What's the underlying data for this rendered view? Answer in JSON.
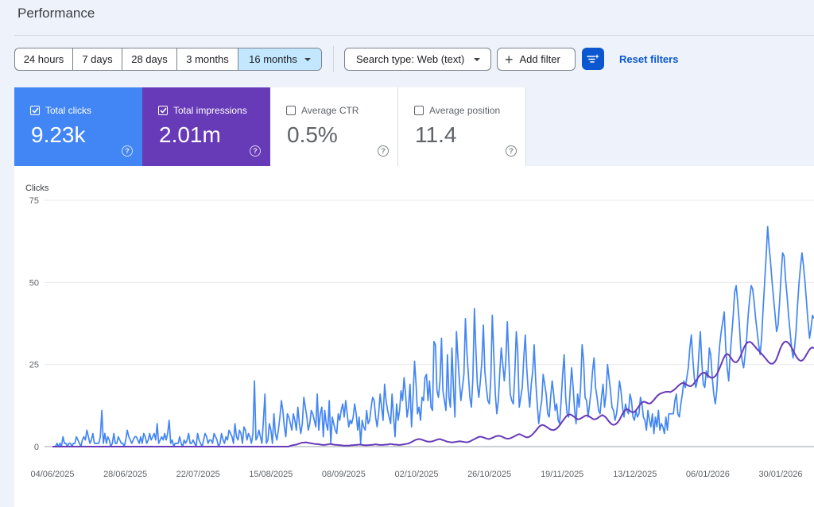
{
  "header": {
    "title": "Performance"
  },
  "date_range": {
    "options": [
      "24 hours",
      "7 days",
      "28 days",
      "3 months",
      "16 months"
    ],
    "selected": "16 months"
  },
  "filters": {
    "search_type": "Search type: Web (text)",
    "add_filter": "Add filter",
    "reset": "Reset filters"
  },
  "metrics": [
    {
      "label": "Total clicks",
      "value": "9.23k",
      "checked": true
    },
    {
      "label": "Total impressions",
      "value": "2.01m",
      "checked": true
    },
    {
      "label": "Average CTR",
      "value": "0.5%",
      "checked": false
    },
    {
      "label": "Average position",
      "value": "11.4",
      "checked": false
    }
  ],
  "colors": {
    "clicks": "#4285f4",
    "impressions": "#673ab7",
    "accent": "#0b57d0",
    "selected_range": "#c2e7ff"
  },
  "chart_data": {
    "type": "line",
    "ylabel": "Clicks",
    "ylim": [
      0,
      75
    ],
    "yticks": [
      0,
      25,
      50,
      75
    ],
    "grid": true,
    "x_tick_labels": [
      "04/06/2025",
      "28/06/2025",
      "22/07/2025",
      "15/08/2025",
      "08/09/2025",
      "02/10/2025",
      "26/10/2025",
      "19/11/2025",
      "13/12/2025",
      "06/01/2026",
      "30/01/2026"
    ],
    "start_label": "04/06/2025",
    "series": [
      {
        "key": "clicks",
        "color": "#4285f4",
        "values": [
          0,
          0,
          0,
          1,
          0,
          1,
          0,
          3,
          1,
          1,
          0,
          1,
          1,
          0,
          1,
          1,
          3,
          2,
          1,
          0,
          2,
          3,
          2,
          5,
          3,
          1,
          2,
          4,
          1,
          1,
          1,
          1,
          3,
          11,
          1,
          4,
          1,
          3,
          2,
          0,
          1,
          4,
          1,
          1,
          3,
          2,
          1,
          1,
          0,
          2,
          5,
          3,
          2,
          1,
          2,
          3,
          3,
          2,
          1,
          3,
          1,
          4,
          3,
          1,
          2,
          4,
          2,
          3,
          4,
          2,
          7,
          1,
          2,
          3,
          2,
          4,
          2,
          4,
          8,
          1,
          2,
          0,
          1,
          1,
          1,
          3,
          1,
          0,
          2,
          1,
          2,
          4,
          1,
          1,
          2,
          1,
          0,
          4,
          2,
          1,
          0,
          2,
          4,
          3,
          1,
          2,
          2,
          1,
          4,
          3,
          2,
          0,
          1,
          4,
          2,
          1,
          3,
          2,
          5,
          4,
          3,
          1,
          7,
          3,
          2,
          5,
          4,
          1,
          6,
          5,
          2,
          4,
          3,
          1,
          4,
          20,
          2,
          3,
          5,
          3,
          1,
          8,
          16,
          1,
          2,
          7,
          5,
          1,
          10,
          4,
          2,
          5,
          9,
          14,
          11,
          6,
          3,
          10,
          9,
          7,
          5,
          10,
          8,
          5,
          12,
          7,
          4,
          7,
          15,
          12,
          9,
          5,
          7,
          11,
          10,
          8,
          6,
          16,
          5,
          10,
          12,
          3,
          11,
          7,
          5,
          14,
          1,
          9,
          7,
          5,
          4,
          10,
          8,
          11,
          13,
          9,
          14,
          10,
          6,
          8,
          7,
          9,
          13,
          10,
          5,
          9,
          1,
          8,
          6,
          5,
          11,
          7,
          8,
          12,
          15,
          14,
          9,
          6,
          10,
          16,
          12,
          8,
          19,
          14,
          11,
          9,
          7,
          16,
          9,
          3,
          13,
          8,
          11,
          17,
          14,
          21,
          16,
          9,
          12,
          19,
          6,
          15,
          26,
          19,
          10,
          12,
          8,
          15,
          14,
          21,
          22,
          14,
          20,
          12,
          11,
          32,
          31,
          17,
          15,
          20,
          33,
          17,
          14,
          11,
          28,
          15,
          12,
          30,
          18,
          9,
          35,
          27,
          20,
          14,
          18,
          22,
          39,
          29,
          22,
          15,
          12,
          21,
          42,
          30,
          19,
          15,
          20,
          26,
          37,
          23,
          18,
          14,
          13,
          21,
          40,
          28,
          16,
          10,
          14,
          23,
          30,
          25,
          20,
          26,
          38,
          27,
          16,
          14,
          13,
          22,
          35,
          29,
          12,
          15,
          18,
          27,
          34,
          24,
          17,
          12,
          19,
          23,
          31,
          20,
          13,
          7,
          11,
          14,
          22,
          19,
          16,
          10,
          9,
          15,
          20,
          16,
          11,
          13,
          8,
          7,
          14,
          22,
          28,
          15,
          10,
          9,
          17,
          24,
          18,
          11,
          7,
          16,
          12,
          18,
          31,
          26,
          15,
          14,
          9,
          13,
          17,
          23,
          27,
          18,
          15,
          11,
          10,
          15,
          19,
          12,
          16,
          25,
          21,
          17,
          12,
          11,
          8,
          10,
          14,
          20,
          17,
          12,
          9,
          13,
          11,
          10,
          16,
          14,
          9,
          8,
          11,
          9,
          10,
          15,
          13,
          9,
          8,
          5,
          11,
          8,
          6,
          10,
          4,
          9,
          6,
          11,
          5,
          7,
          6,
          4,
          9,
          5,
          10,
          10,
          10,
          10,
          14,
          16,
          10,
          9,
          13,
          16,
          20,
          18,
          21,
          24,
          30,
          34,
          27,
          21,
          18,
          20,
          28,
          35,
          26,
          19,
          18,
          23,
          21,
          30,
          28,
          21,
          16,
          13,
          17,
          25,
          31,
          35,
          38,
          41,
          30,
          24,
          20,
          28,
          34,
          40,
          47,
          49,
          44,
          38,
          30,
          26,
          24,
          28,
          33,
          40,
          45,
          49,
          48,
          44,
          39,
          35,
          31,
          28,
          33,
          42,
          50,
          58,
          67,
          61,
          56,
          50,
          45,
          40,
          35,
          37,
          44,
          52,
          59,
          58,
          51,
          46,
          40,
          35,
          30,
          27,
          30,
          35,
          43,
          50,
          55,
          59,
          55,
          50,
          44,
          38,
          33,
          36,
          40,
          39
        ]
      },
      {
        "key": "impressions",
        "color": "#673ab7",
        "values": [
          0,
          0,
          0,
          0,
          0,
          0,
          0,
          0,
          0,
          0,
          0,
          0,
          0,
          0,
          0,
          0,
          0,
          0,
          0,
          0,
          0,
          0,
          0,
          0,
          0,
          0,
          0,
          0,
          0,
          0,
          0,
          0,
          0,
          0,
          0,
          0,
          0,
          0,
          0,
          0,
          0,
          0,
          0,
          0,
          0,
          0,
          0,
          0,
          0,
          0,
          0,
          0,
          0,
          0,
          0,
          0,
          0,
          0,
          0,
          0,
          0,
          0,
          0,
          0,
          0,
          0,
          0,
          0,
          0,
          0,
          0,
          0,
          0,
          0,
          0,
          0,
          0,
          0,
          0,
          0,
          0,
          0,
          0,
          0,
          0,
          0,
          0,
          0,
          0,
          0,
          0,
          0,
          0,
          0,
          0,
          0,
          0,
          0,
          0,
          0,
          0,
          0,
          0,
          0,
          0,
          0,
          0,
          0,
          0,
          0,
          0,
          0,
          0,
          0,
          0,
          0,
          0,
          0,
          0,
          0,
          0,
          0,
          0,
          0,
          0,
          0,
          0.3,
          0.4,
          0.5,
          0.6,
          0.8,
          1,
          1.2,
          1.2,
          1.3,
          1.2,
          1.1,
          1,
          0.9,
          0.8,
          0.8,
          0.7,
          0.6,
          0.5,
          0.5,
          0.6,
          0.7,
          0.8,
          0.7,
          0.6,
          0.5,
          0.5,
          0.4,
          0.4,
          0.3,
          0.3,
          0.3,
          0.3,
          0.4,
          0.4,
          0.5,
          0.5,
          0.6,
          0.6,
          0.5,
          0.4,
          0.4,
          0.4,
          0.5,
          0.5,
          0.6,
          0.7,
          0.6,
          0.5,
          0.5,
          0.5,
          0.6,
          0.6,
          0.7,
          0.8,
          0.7,
          0.6,
          0.6,
          0.5,
          0.5,
          0.6,
          0.7,
          0.8,
          0.9,
          1.1,
          1.4,
          1.7,
          2,
          2.2,
          2.3,
          2.2,
          2,
          1.8,
          1.6,
          1.5,
          1.5,
          1.6,
          1.8,
          2,
          2.2,
          2.3,
          2.1,
          1.9,
          1.7,
          1.5,
          1.4,
          1.3,
          1.3,
          1.4,
          1.5,
          1.6,
          1.6,
          1.5,
          1.4,
          1.3,
          1.4,
          1.6,
          1.9,
          2.2,
          2.5,
          2.8,
          3,
          3,
          2.8,
          2.6,
          2.4,
          2.3,
          2.5,
          2.7,
          3,
          3.2,
          3.3,
          3.2,
          3,
          2.7,
          2.5,
          2.4,
          2.5,
          2.7,
          3,
          3.3,
          3.6,
          3.8,
          3.6,
          3.3,
          3,
          2.8,
          2.9,
          3.2,
          3.7,
          4.3,
          5,
          5.7,
          6.3,
          6.6,
          6.5,
          6.2,
          5.8,
          5.4,
          5.1,
          5,
          5.2,
          5.6,
          6.2,
          7,
          7.8,
          8.6,
          9.3,
          9.7,
          9.8,
          9.5,
          9.1,
          8.6,
          8.3,
          8.4,
          8.7,
          9.1,
          9.4,
          9.5,
          9.2,
          8.8,
          8.4,
          8.3,
          8.5,
          8.9,
          9.3,
          9.6,
          9.3,
          8.8,
          8,
          7.3,
          6.8,
          6.6,
          6.8,
          7.3,
          8.1,
          9.2,
          10.3,
          11.1,
          11.4,
          11.2,
          10.7,
          10.4,
          10.6,
          11.2,
          12,
          12.8,
          13.4,
          13.7,
          13.5,
          13.2,
          13.1,
          13.4,
          14,
          14.7,
          15.4,
          15.9,
          16.2,
          16.4,
          16.6,
          16.7,
          16.7,
          16.6,
          16.9,
          17.3,
          17.8,
          18.4,
          18.9,
          19.3,
          19.4,
          19.1,
          18.7,
          18.4,
          18.4,
          18.9,
          19.6,
          20.4,
          21.3,
          22,
          22.4,
          22.5,
          22.1,
          21.6,
          21.1,
          20.9,
          21.1,
          21.6,
          22.5,
          23.8,
          25.2,
          26.7,
          27.8,
          28.2,
          27.9,
          27.1,
          26.2,
          25.7,
          25.7,
          26.3,
          27.4,
          28.8,
          30.2,
          31.2,
          31.8,
          31.9,
          31.6,
          31,
          30.3,
          29.6,
          29,
          28.4,
          27.8,
          27.1,
          26.4,
          25.7,
          25.3,
          25.2,
          25.6,
          26.5,
          27.9,
          29.6,
          30.9,
          31.7,
          32,
          31.8,
          31.2,
          30.3,
          29.2,
          28.1,
          27.1,
          26.4,
          26.1,
          26.3,
          27,
          28,
          29,
          29.8,
          30.2,
          30
        ]
      }
    ]
  }
}
